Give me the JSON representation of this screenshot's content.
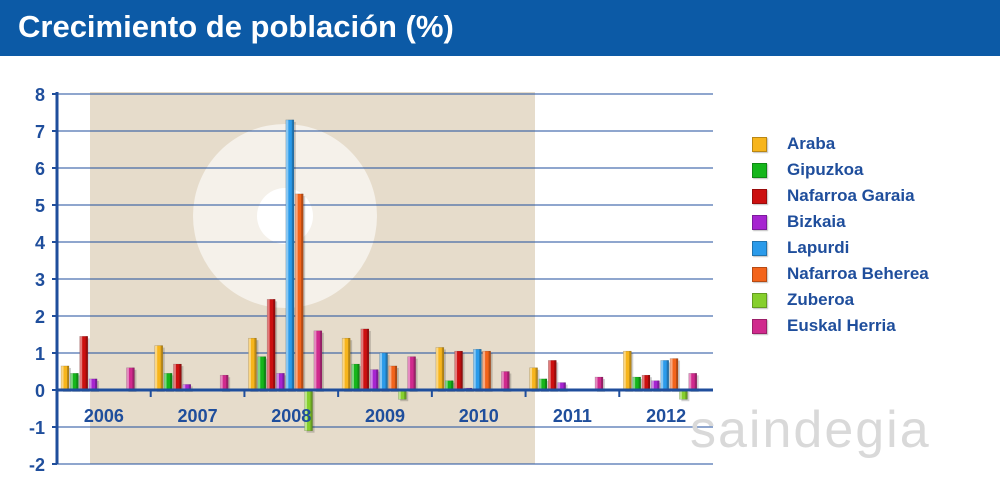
{
  "title": "Crecimiento de población (%)",
  "watermark": "saindegia",
  "colors": {
    "title_bar": "#0c5aa6",
    "axis": "#1f4e9c",
    "grid": "#1f4e9c",
    "logo_bg": "#e6dccb"
  },
  "chart_data": {
    "type": "bar",
    "categories": [
      "2006",
      "2007",
      "2008",
      "2009",
      "2010",
      "2011",
      "2012"
    ],
    "ylim": [
      -2,
      8
    ],
    "yticks": [
      -2,
      -1,
      0,
      1,
      2,
      3,
      4,
      5,
      6,
      7,
      8
    ],
    "grid": true,
    "legend_position": "right",
    "series": [
      {
        "name": "Araba",
        "color": "#f7b51c",
        "values": [
          0.65,
          1.2,
          1.4,
          1.4,
          1.15,
          0.6,
          1.05
        ]
      },
      {
        "name": "Gipuzkoa",
        "color": "#15b61b",
        "values": [
          0.45,
          0.45,
          0.9,
          0.7,
          0.25,
          0.3,
          0.35
        ]
      },
      {
        "name": "Nafarroa Garaia",
        "color": "#cc1010",
        "values": [
          1.45,
          0.7,
          2.45,
          1.65,
          1.05,
          0.8,
          0.4
        ]
      },
      {
        "name": "Bizkaia",
        "color": "#a624d0",
        "values": [
          0.3,
          0.15,
          0.45,
          0.55,
          0.05,
          0.2,
          0.25
        ]
      },
      {
        "name": "Lapurdi",
        "color": "#2b9bea",
        "values": [
          null,
          null,
          7.3,
          1.0,
          1.1,
          null,
          0.8
        ]
      },
      {
        "name": "Nafarroa Beherea",
        "color": "#f3641b",
        "values": [
          null,
          null,
          5.3,
          0.65,
          1.05,
          null,
          0.85
        ]
      },
      {
        "name": "Zuberoa",
        "color": "#86cf2c",
        "values": [
          null,
          null,
          -1.1,
          -0.25,
          null,
          null,
          -0.25
        ]
      },
      {
        "name": "Euskal Herria",
        "color": "#d02a8d",
        "values": [
          0.6,
          0.4,
          1.6,
          0.9,
          0.5,
          0.35,
          0.45
        ]
      }
    ]
  }
}
